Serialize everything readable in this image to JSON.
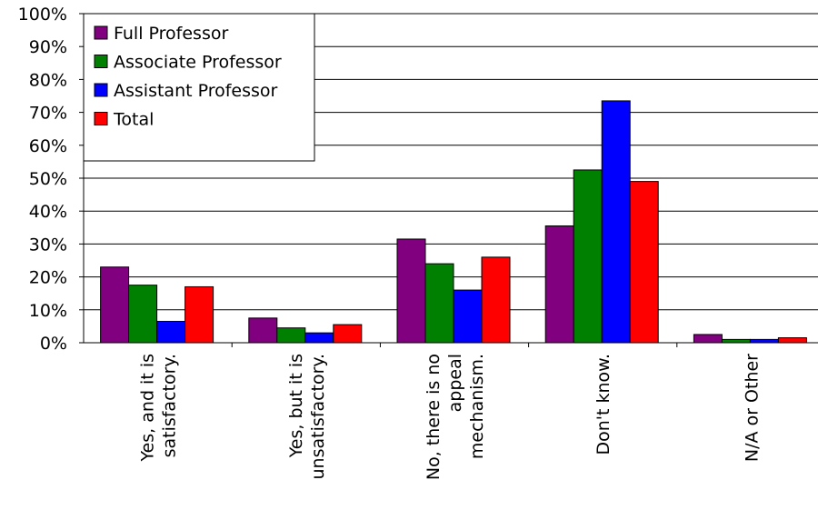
{
  "chart_data": {
    "type": "bar",
    "title": "",
    "xlabel": "",
    "ylabel": "",
    "ylim": [
      0,
      100
    ],
    "y_ticks": [
      "0%",
      "10%",
      "20%",
      "30%",
      "40%",
      "50%",
      "60%",
      "70%",
      "80%",
      "90%",
      "100%"
    ],
    "grid": true,
    "legend_position": "top-left",
    "categories": [
      [
        "Yes, and it is",
        "satisfactory."
      ],
      [
        "Yes, but it is",
        "unsatisfactory."
      ],
      [
        "No, there is no",
        "appeal",
        "mechanism."
      ],
      [
        "Don't know."
      ],
      [
        "N/A or Other"
      ]
    ],
    "series": [
      {
        "name": "Full Professor",
        "color": "#800080",
        "values": [
          23,
          7.5,
          31.5,
          35.5,
          2.5
        ]
      },
      {
        "name": "Associate Professor",
        "color": "#008000",
        "values": [
          17.5,
          4.5,
          24,
          52.5,
          1
        ]
      },
      {
        "name": "Assistant Professor",
        "color": "#0000ff",
        "values": [
          6.5,
          3,
          16,
          73.5,
          1
        ]
      },
      {
        "name": "Total",
        "color": "#ff0000",
        "values": [
          17,
          5.5,
          26,
          49,
          1.5
        ]
      }
    ]
  }
}
